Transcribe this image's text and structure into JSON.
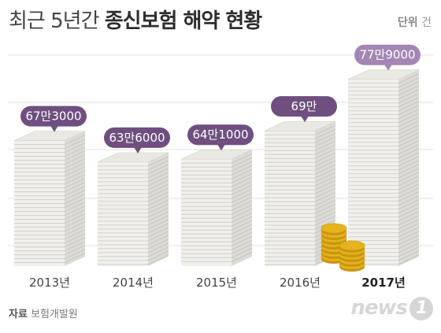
{
  "title": {
    "light": "최근 5년간",
    "bold": "종신보험 해약 현황"
  },
  "unit": {
    "label": "단위",
    "value": "건"
  },
  "chart_data": {
    "type": "bar",
    "categories": [
      "2013년",
      "2014년",
      "2015년",
      "2016년",
      "2017년"
    ],
    "values": [
      673000,
      636000,
      641000,
      690000,
      779000
    ],
    "data_labels": [
      "67만3000",
      "63만6000",
      "64만1000",
      "69만",
      "77만9000"
    ],
    "highlight_index": 4,
    "ylim": [
      0,
      800000
    ],
    "grid": true,
    "colors": {
      "bubble": "#6e4f7f",
      "bubble_highlight": "#a386b4",
      "paper": "#ecebe6",
      "gold": "#e6b31c"
    }
  },
  "source": {
    "label": "자료",
    "value": "보험개발원"
  },
  "logo": {
    "text": "news",
    "num": "1"
  }
}
